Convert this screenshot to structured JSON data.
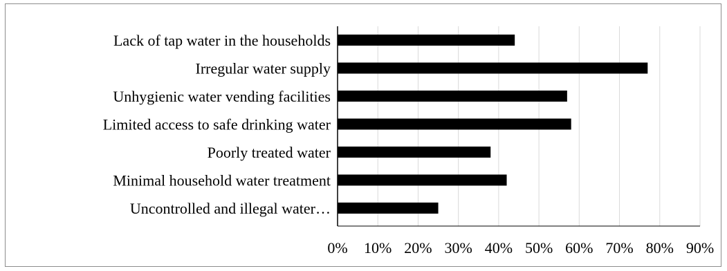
{
  "chart_data": {
    "type": "bar",
    "orientation": "horizontal",
    "categories": [
      "Lack of tap water in the households",
      "Irregular water supply",
      "Unhygienic water vending facilities",
      "Limited access to safe drinking water",
      "Poorly treated water",
      "Minimal household water treatment",
      "Uncontrolled and illegal water…"
    ],
    "values": [
      0.44,
      0.77,
      0.57,
      0.58,
      0.38,
      0.42,
      0.25
    ],
    "xlim": [
      0,
      0.9
    ],
    "xticks": [
      0,
      0.1,
      0.2,
      0.3,
      0.4,
      0.5,
      0.6,
      0.7,
      0.8,
      0.9
    ],
    "xtick_labels": [
      "0%",
      "10%",
      "20%",
      "30%",
      "40%",
      "50%",
      "60%",
      "70%",
      "80%",
      "90%"
    ],
    "grid": "vertical",
    "bar_color": "#000000",
    "grid_color": "#d9d9d9",
    "axis_color": "#000000"
  }
}
